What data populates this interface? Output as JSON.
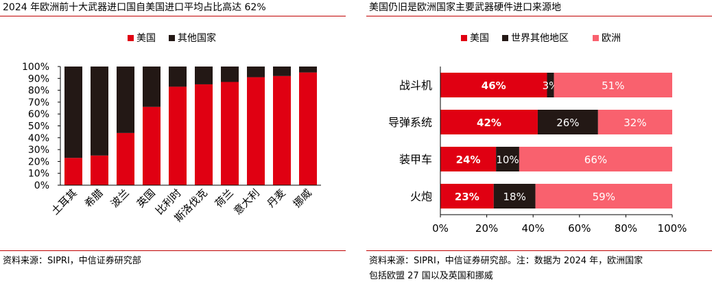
{
  "colors": {
    "us": "#e00012",
    "other": "#231815",
    "europe": "#f9616e",
    "rule": "#c00000"
  },
  "left": {
    "title": "2024 年欧洲前十大武器进口国自美国进口平均占比高达 62%",
    "source": "资料来源：SIPRI，中信证券研究部"
  },
  "right": {
    "title": "美国仍旧是欧洲国家主要武器硬件进口来源地",
    "source_line1": "资料来源：SIPRI，中信证券研究部。注：数据为 2024 年，欧洲国家",
    "source_line2": "包括欧盟 27 国以及英国和挪威"
  },
  "chart_data": [
    {
      "type": "bar",
      "stacked": true,
      "orientation": "vertical",
      "categories": [
        "土耳其",
        "希腊",
        "波兰",
        "英国",
        "比利时",
        "斯洛伐克",
        "荷兰",
        "意大利",
        "丹麦",
        "挪威"
      ],
      "series": [
        {
          "name": "美国",
          "color_key": "us",
          "values": [
            23,
            25,
            44,
            66,
            83,
            85,
            87,
            91,
            92,
            95
          ]
        },
        {
          "name": "其他国家",
          "color_key": "other",
          "values": [
            77,
            75,
            56,
            34,
            17,
            15,
            13,
            9,
            8,
            5
          ]
        }
      ],
      "ylim": [
        0,
        100
      ],
      "yticks": [
        "0%",
        "10%",
        "20%",
        "30%",
        "40%",
        "50%",
        "60%",
        "70%",
        "80%",
        "90%",
        "100%"
      ],
      "legend": "top-left"
    },
    {
      "type": "bar",
      "stacked": true,
      "orientation": "horizontal",
      "categories": [
        "战斗机",
        "导弹系统",
        "装甲车",
        "火炮"
      ],
      "series": [
        {
          "name": "美国",
          "color_key": "us",
          "values": [
            46,
            42,
            24,
            23
          ],
          "labels": [
            "46%",
            "42%",
            "24%",
            "23%"
          ]
        },
        {
          "name": "世界其他地区",
          "color_key": "other",
          "values": [
            3,
            26,
            10,
            18
          ],
          "labels": [
            "3%",
            "26%",
            "10%",
            "18%"
          ]
        },
        {
          "name": "欧洲",
          "color_key": "europe",
          "values": [
            51,
            32,
            66,
            59
          ],
          "labels": [
            "51%",
            "32%",
            "66%",
            "59%"
          ]
        }
      ],
      "xlim": [
        0,
        100
      ],
      "xticks": [
        "0%",
        "20%",
        "40%",
        "60%",
        "80%",
        "100%"
      ],
      "legend": "top-center"
    }
  ]
}
